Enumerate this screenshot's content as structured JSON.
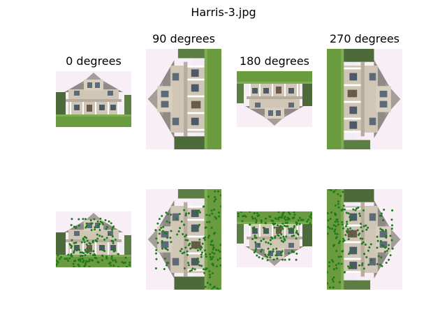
{
  "figure": {
    "title": "Harris-3.jpg",
    "columns": [
      {
        "rotation": "0 degrees"
      },
      {
        "rotation": "90 degrees"
      },
      {
        "rotation": "180 degrees"
      },
      {
        "rotation": "270 degrees"
      }
    ],
    "rows": [
      "original-rotated-image",
      "harris-corner-overlay"
    ],
    "marker_color": "#1f7a1f"
  }
}
